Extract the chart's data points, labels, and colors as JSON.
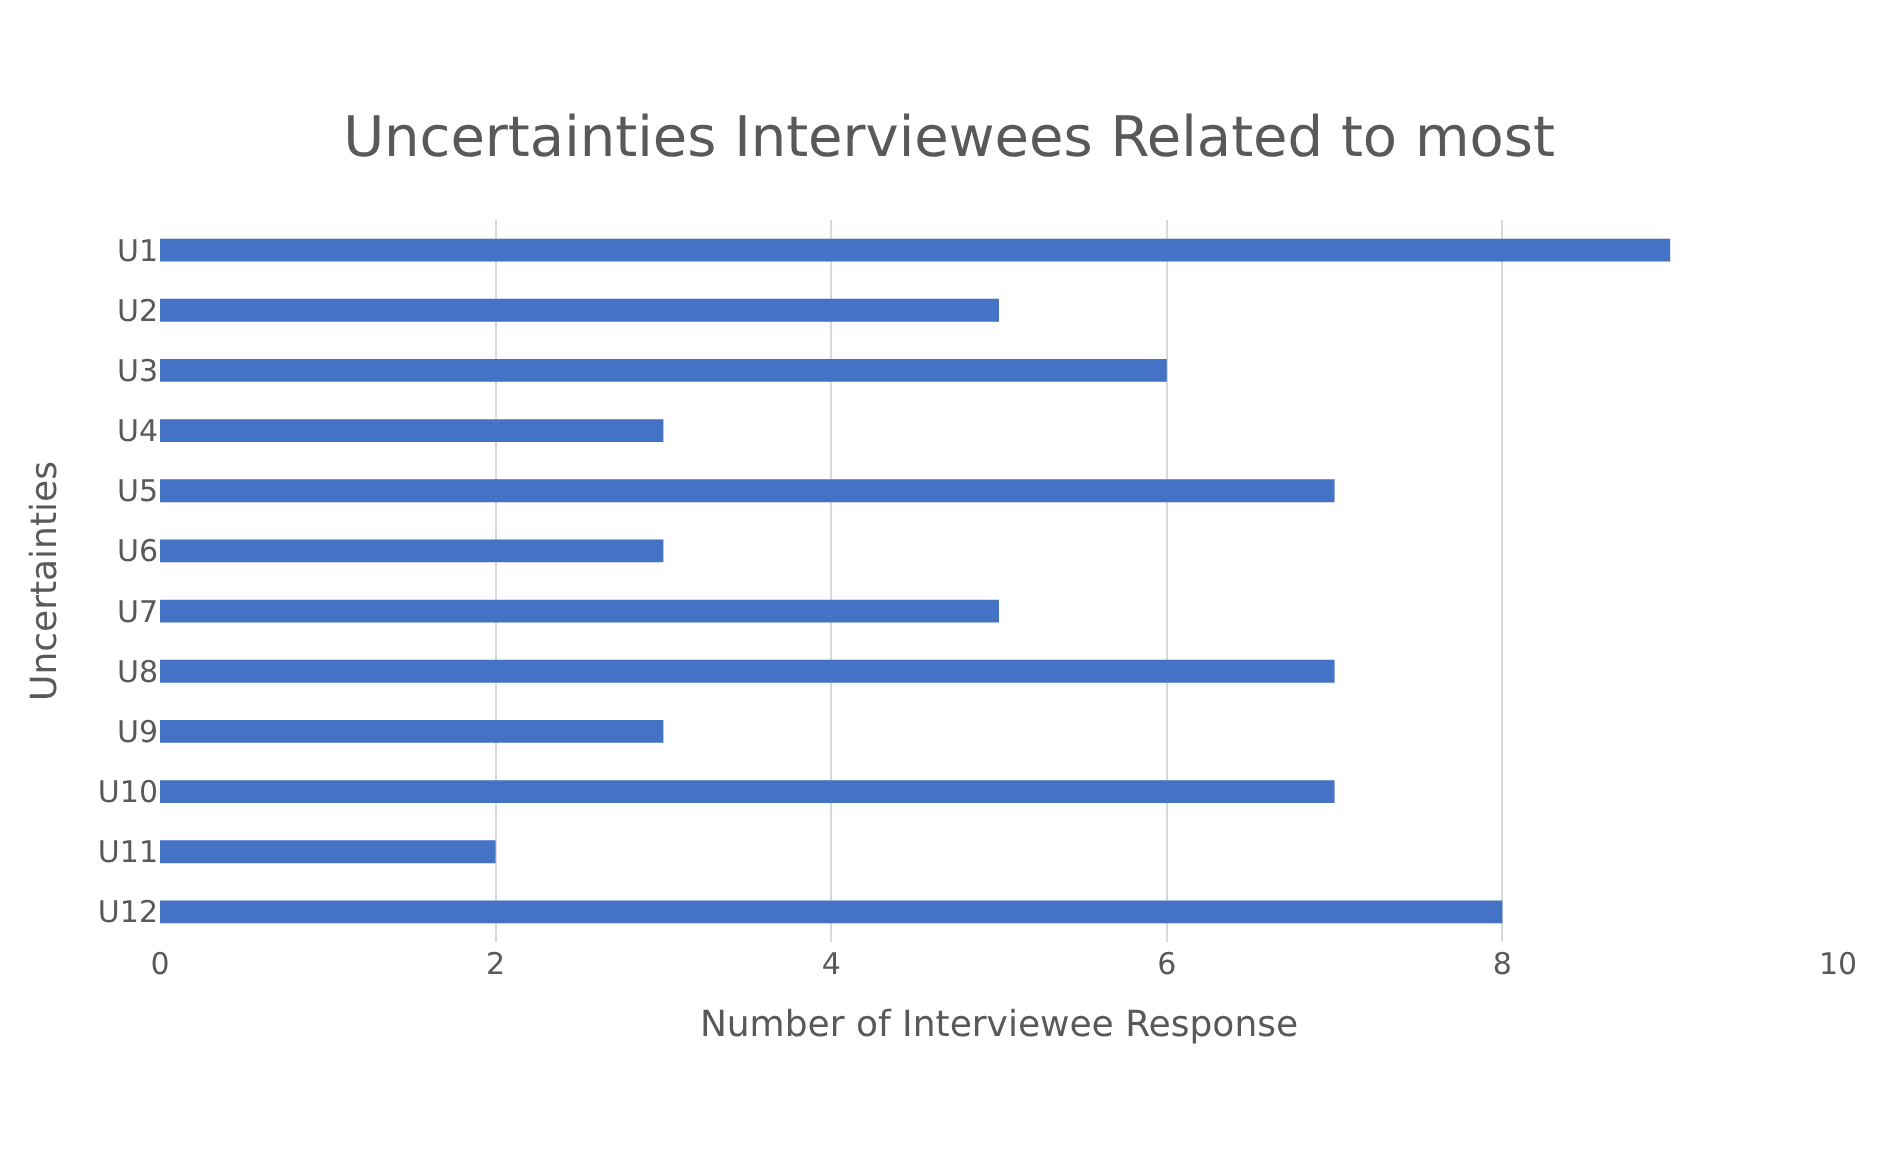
{
  "chart_data": {
    "type": "bar",
    "orientation": "horizontal",
    "title": "Uncertainties Interviewees Related to most",
    "xlabel": "Number of Interviewee Response",
    "ylabel": "Uncertainties",
    "categories": [
      "U1",
      "U2",
      "U3",
      "U4",
      "U5",
      "U6",
      "U7",
      "U8",
      "U9",
      "U10",
      "U11",
      "U12"
    ],
    "values": [
      9,
      5,
      6,
      3,
      7,
      3,
      5,
      7,
      3,
      7,
      2,
      8
    ],
    "color": "#4472c4",
    "xlim": [
      0,
      10
    ],
    "xticks": [
      0,
      2,
      4,
      6,
      8,
      10
    ],
    "grid": "x",
    "legend": false
  }
}
